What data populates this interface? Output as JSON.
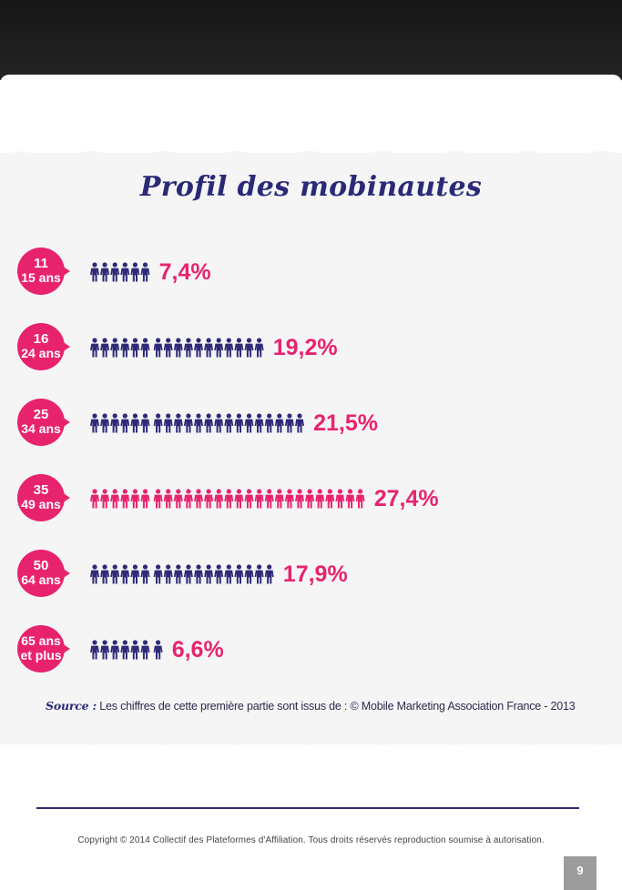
{
  "chart_data": {
    "type": "bar",
    "title": "Profil des mobinautes",
    "categories": [
      "11 15 ans",
      "16 24 ans",
      "25 34 ans",
      "35 49 ans",
      "50 64 ans",
      "65 ans et plus"
    ],
    "category_lines": [
      [
        "11",
        "15 ans"
      ],
      [
        "16",
        "24 ans"
      ],
      [
        "25",
        "34 ans"
      ],
      [
        "35",
        "49 ans"
      ],
      [
        "50",
        "64 ans"
      ],
      [
        "65 ans",
        "et plus"
      ]
    ],
    "values": [
      7.4,
      19.2,
      21.5,
      27.4,
      17.9,
      6.6
    ],
    "value_labels": [
      "7,4%",
      "19,2%",
      "21,5%",
      "27,4%",
      "17,9%",
      "6,6%"
    ],
    "icon_counts": [
      6,
      17,
      21,
      27,
      18,
      7
    ],
    "highlight_index": 3,
    "unit": "%",
    "icon": "person-icon"
  },
  "colors": {
    "navy": "#2e2a78",
    "magenta": "#e8236e",
    "badge": "#e8236e"
  },
  "source": {
    "label": "Source :",
    "text": "Les chiffres de cette première partie sont issus de : © Mobile Marketing Association France - 2013"
  },
  "footer": {
    "copyright": "Copyright © 2014 Collectif des Plateformes d'Affiliation. Tous droits réservés reproduction soumise à autorisation.",
    "page_number": "9"
  }
}
